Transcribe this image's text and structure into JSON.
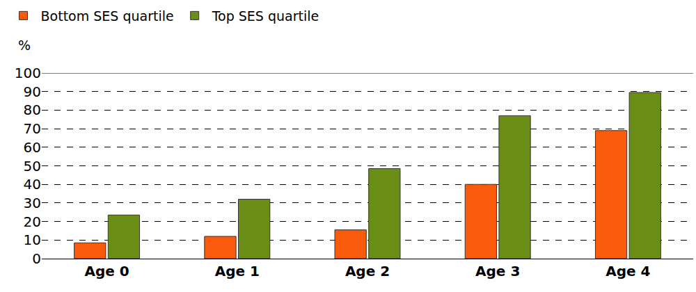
{
  "chart_data": {
    "type": "bar",
    "ylabel": "%",
    "categories": [
      "Age 0",
      "Age 1",
      "Age 2",
      "Age 3",
      "Age 4"
    ],
    "series": [
      {
        "name": "Bottom SES quartile",
        "color": "#f95a0b",
        "values": [
          8.5,
          12,
          15.5,
          40,
          69
        ]
      },
      {
        "name": "Top SES quartile",
        "color": "#6a8e15",
        "values": [
          23.5,
          32,
          48.5,
          77,
          89.5
        ]
      }
    ],
    "ylim": [
      0,
      100
    ],
    "yticks": [
      0,
      10,
      20,
      30,
      40,
      50,
      60,
      70,
      80,
      90,
      100
    ],
    "grid": true,
    "legend": "top left"
  }
}
